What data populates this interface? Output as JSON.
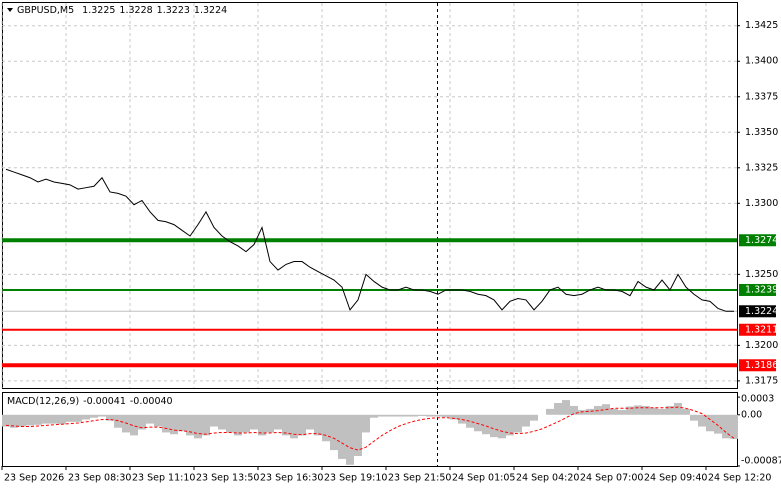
{
  "chart_data": [
    {
      "type": "line",
      "symbol": "GBPUSD,M5",
      "ohlc": [
        1.3225,
        1.3228,
        1.3223,
        1.3224
      ],
      "categories": [
        "23 Sep 2026",
        null,
        null,
        null,
        null,
        null,
        null,
        null,
        "23 Sep 08:30",
        null,
        null,
        null,
        null,
        null,
        null,
        null,
        "23 Sep 11:10",
        null,
        null,
        null,
        null,
        null,
        null,
        null,
        "23 Sep 13:50",
        null,
        null,
        null,
        null,
        null,
        null,
        null,
        "23 Sep 16:30",
        null,
        null,
        null,
        null,
        null,
        null,
        null,
        "23 Sep 19:10",
        null,
        null,
        null,
        null,
        null,
        null,
        null,
        "23 Sep 21:50",
        null,
        null,
        null,
        null,
        null,
        null,
        null,
        "24 Sep 01:05",
        null,
        null,
        null,
        null,
        null,
        null,
        null,
        "24 Sep 04:20",
        null,
        null,
        null,
        null,
        null,
        null,
        null,
        "24 Sep 07:00",
        null,
        null,
        null,
        null,
        null,
        null,
        null,
        "24 Sep 09:40",
        null,
        null,
        null,
        null,
        null,
        null,
        null,
        "24 Sep 12:20",
        null,
        null,
        null
      ],
      "series": [
        {
          "color": "#000000",
          "values": [
            1.3324,
            1.3322,
            1.332,
            1.3318,
            1.3315,
            1.3317,
            1.3315,
            1.3314,
            1.3313,
            1.331,
            1.3311,
            1.3312,
            1.3318,
            1.3308,
            1.3307,
            1.3305,
            1.3299,
            1.3302,
            1.3294,
            1.3288,
            1.3287,
            1.3285,
            1.3281,
            1.3277,
            1.3285,
            1.3294,
            1.3283,
            1.3277,
            1.3273,
            1.327,
            1.3266,
            1.3271,
            1.3283,
            1.3259,
            1.3253,
            1.3257,
            1.3259,
            1.3259,
            1.3255,
            1.3252,
            1.3249,
            1.3246,
            1.3241,
            1.3225,
            1.3232,
            1.325,
            1.3245,
            1.3241,
            1.3239,
            1.3239,
            1.3241,
            1.3239,
            1.3239,
            1.3238,
            1.3236,
            1.3239,
            1.3239,
            1.3239,
            1.3238,
            1.3236,
            1.3235,
            1.3232,
            1.3225,
            1.3231,
            1.3233,
            1.3232,
            1.3225,
            1.3231,
            1.3239,
            1.3241,
            1.3236,
            1.3235,
            1.3236,
            1.3239,
            1.3241,
            1.3239,
            1.3239,
            1.3238,
            1.3235,
            1.3245,
            1.3241,
            1.3239,
            1.3246,
            1.3239,
            1.325,
            1.3241,
            1.3236,
            1.3232,
            1.3231,
            1.3226,
            1.3224,
            1.3224
          ]
        }
      ],
      "ylim": [
        1.317,
        1.3441
      ],
      "yticks": [
        1.3425,
        {
          "value": 1.34,
          "label": "1.3400"
        },
        1.3375,
        {
          "value": 1.335,
          "label": "1.3350"
        },
        1.3325,
        {
          "value": 1.33,
          "label": "1.3300"
        },
        {
          "value": 1.325,
          "label": "1.3250"
        },
        {
          "value": 1.32,
          "label": "1.3200"
        },
        1.3175
      ],
      "grid": true,
      "levels": [
        {
          "value": 1.3274,
          "color": "#008000"
        },
        {
          "value": 1.3239,
          "color": "#008000"
        },
        {
          "value": 1.3211,
          "color": "#ff0000"
        },
        {
          "value": 1.3186,
          "color": "#ff0000"
        }
      ],
      "last_price": 1.3224
    },
    {
      "type": "macd",
      "title": "MACD(12,26,9)",
      "header_values": [
        -0.00041,
        {
          "value": -0.0004,
          "label": "-0.00040"
        }
      ],
      "series": [
        {
          "kind": "bar",
          "color": "#c0c0c0",
          "values": [
            -0.0002,
            -0.00022,
            -0.0002,
            -0.00018,
            -0.00017,
            -0.00015,
            -0.00015,
            -0.00016,
            -0.00012,
            -0.00012,
            -8e-05,
            -5e-05,
            -3e-05,
            -0.0001,
            -0.00022,
            -0.0003,
            -0.00035,
            -0.00025,
            -0.00015,
            -0.0002,
            -0.0003,
            -0.00033,
            -0.00028,
            -0.00035,
            -0.0004,
            -0.00035,
            -0.0002,
            -0.00025,
            -0.0003,
            -0.00035,
            -0.0003,
            -0.00025,
            -0.00035,
            -0.0003,
            -0.00025,
            -0.00035,
            -0.0004,
            -0.00035,
            -0.00025,
            -0.00035,
            -0.00045,
            -0.0006,
            -0.00075,
            -0.00085,
            -0.0007,
            -0.0003,
            -5e-05,
            -3e-05,
            -3e-05,
            -3e-05,
            -3e-05,
            -3e-05,
            -2e-05,
            -3e-05,
            -3e-05,
            -4e-05,
            -8e-05,
            -0.00015,
            -0.00022,
            -0.00028,
            -0.00033,
            -0.00038,
            -0.0004,
            -0.00035,
            -0.0003,
            -0.0002,
            -0.0001,
            0,
            0.0001,
            0.0002,
            0.00025,
            0.00015,
            8e-05,
            0.0001,
            0.00015,
            0.00018,
            0.0001,
            8e-05,
            0.00014,
            0.00016,
            0.00015,
            0.00012,
            0.0001,
            0.00015,
            0.0002,
            0.0001,
            -0.0001,
            -0.0002,
            -0.00028,
            -0.00032,
            -0.0004,
            -0.00041
          ]
        },
        {
          "kind": "line",
          "color": "#ff0000",
          "values": [
            -0.00018,
            -0.00019,
            -0.0002,
            -0.0002,
            -0.00019,
            -0.00018,
            -0.00017,
            -0.00016,
            -0.00015,
            -0.00014,
            -0.00012,
            -0.0001,
            -8e-05,
            -8e-05,
            -0.0001,
            -0.00014,
            -0.00019,
            -0.00022,
            -0.00021,
            -0.00021,
            -0.00023,
            -0.00026,
            -0.00027,
            -0.00029,
            -0.00032,
            -0.00033,
            -0.00031,
            -0.0003,
            -0.0003,
            -0.00031,
            -0.00031,
            -0.0003,
            -0.00031,
            -0.00031,
            -0.0003,
            -0.00031,
            -0.00033,
            -0.00034,
            -0.00032,
            -0.00032,
            -0.00035,
            -0.0004,
            -0.00048,
            -0.00056,
            -0.0006,
            -0.00055,
            -0.00045,
            -0.00035,
            -0.00027,
            -0.0002,
            -0.00015,
            -0.00011,
            -8e-05,
            -6e-05,
            -5e-05,
            -5e-05,
            -6e-05,
            -8e-05,
            -0.00011,
            -0.00015,
            -0.00019,
            -0.00024,
            -0.00028,
            -0.00031,
            -0.00032,
            -0.00031,
            -0.00028,
            -0.00024,
            -0.00018,
            -0.00012,
            -5e-05,
            2e-05,
            5e-05,
            6e-05,
            7e-05,
            9e-05,
            0.00011,
            0.00011,
            0.00011,
            0.00012,
            0.00012,
            0.00012,
            0.00012,
            0.00012,
            0.00013,
            0.00011,
            7e-05,
            2e-05,
            -8e-05,
            -0.00018,
            -0.0003,
            -0.0004
          ]
        }
      ],
      "ylim": [
        -0.00087,
        0.00037
      ],
      "yticks": [
        0.0003,
        {
          "value": 0,
          "label": "0.00"
        },
        -0.00087
      ]
    }
  ]
}
